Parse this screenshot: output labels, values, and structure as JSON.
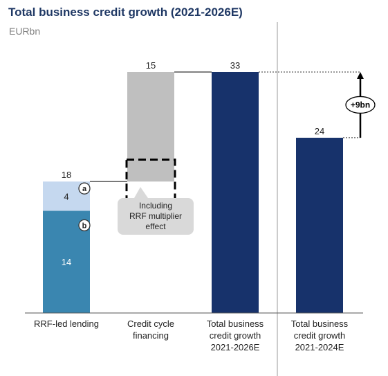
{
  "title": "Total business credit growth (2021-2026E)",
  "unit_label": "EURbn",
  "colors": {
    "title": "#1f3864",
    "rrf_a": "#c5d8ef",
    "rrf_b": "#3a86b0",
    "credit_cycle": "#bfbfbf",
    "total": "#17326b",
    "callout_bg": "#d9d9d9"
  },
  "chart_data": {
    "type": "bar",
    "subtype": "waterfall",
    "ylim": [
      0,
      33
    ],
    "categories": [
      "RRF-led lending",
      "Credit cycle financing",
      "Total business credit growth 2021-2026E",
      "Total business credit growth 2021-2024E"
    ],
    "category_labels": [
      [
        "RRF-led lending"
      ],
      [
        "Credit cycle",
        "financing"
      ],
      [
        "Total business",
        "credit growth",
        "2021-2026E"
      ],
      [
        "Total business",
        "credit growth",
        "2021-2024E"
      ]
    ],
    "bars": [
      {
        "category": "RRF-led lending",
        "segments": [
          {
            "marker": "b",
            "value": 14,
            "label": "14",
            "color_key": "rrf_b"
          },
          {
            "marker": "a",
            "value": 4,
            "label": "4",
            "color_key": "rrf_a"
          }
        ],
        "total_label": "18"
      },
      {
        "category": "Credit cycle financing",
        "base": 18,
        "value": 15,
        "label": "15",
        "color_key": "credit_cycle"
      },
      {
        "category": "Total business credit growth 2021-2026E",
        "value": 33,
        "label": "33",
        "color_key": "total"
      },
      {
        "category": "Total business credit growth 2021-2024E",
        "value": 24,
        "label": "24",
        "color_key": "total"
      }
    ],
    "dashed_box": {
      "from": 15,
      "to": 21
    },
    "callout": {
      "lines": [
        "Including",
        "RRF multiplier",
        "effect"
      ]
    },
    "difference": {
      "from": 24,
      "to": 33,
      "label": "+9bn"
    },
    "markers": [
      "a",
      "b"
    ]
  }
}
